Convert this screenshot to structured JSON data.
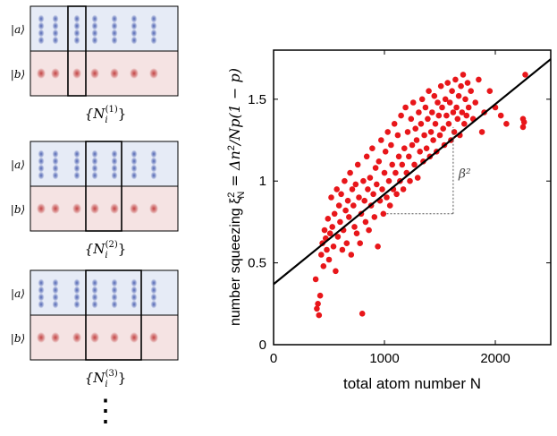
{
  "panels": [
    {
      "label_a": "|a⟩",
      "label_b": "|b⟩",
      "set_label": "{N_i^(1)}",
      "set_main": "{N",
      "set_sub": "i",
      "set_sup": "(1)",
      "set_close": "}",
      "window_columns": [
        1,
        1
      ]
    },
    {
      "label_a": "|a⟩",
      "label_b": "|b⟩",
      "set_label": "{N_i^(2)}",
      "set_main": "{N",
      "set_sub": "i",
      "set_sup": "(2)",
      "set_close": "}",
      "window_columns": [
        1,
        2
      ]
    },
    {
      "label_a": "|a⟩",
      "label_b": "|b⟩",
      "set_label": "{N_i^(3)}",
      "set_main": "{N",
      "set_sub": "i",
      "set_sup": "(3)",
      "set_close": "}",
      "window_columns": [
        1,
        3
      ]
    }
  ],
  "ellipsis": "⋮",
  "colors": {
    "state_a_bg": "#e6ebf6",
    "state_a_blob": "#4a5fb0",
    "state_b_bg": "#f5e3e3",
    "state_b_blob": "#c03a3a",
    "points": "#e8161a",
    "fit_line": "#000000"
  },
  "annotation": "β²",
  "chart_data": {
    "type": "scatter",
    "xlabel": "total atom number N",
    "ylabel": "number squeezing ξ²_N = Δn²/Np(1−p)",
    "ylabel_parts": {
      "main": "number squeezing ξ",
      "sup": "2",
      "sub": "N",
      "rest": " = Δn",
      "sup2": "2",
      "tail": "/Np(1 − p)"
    },
    "xlim": [
      0,
      2500
    ],
    "ylim": [
      0,
      1.8
    ],
    "xticks": [
      0,
      1000,
      2000
    ],
    "yticks": [
      0,
      0.5,
      1,
      1.5
    ],
    "xtick_labels": [
      "0",
      "1000",
      "2000"
    ],
    "ytick_labels": [
      "0",
      "0.5",
      "1",
      "1.5"
    ],
    "fit": {
      "intercept": 0.37,
      "slope": 0.00055
    },
    "triangle": {
      "x1": 1020,
      "x2": 1620,
      "y_low": 0.8,
      "y_high": 1.33
    },
    "series": [
      {
        "x": [
          380,
          390,
          400,
          410,
          420,
          430,
          440,
          450,
          460,
          470,
          480,
          490,
          500,
          510,
          520,
          530,
          540,
          550,
          560,
          570,
          580,
          590,
          600,
          610,
          620,
          630,
          640,
          650,
          660,
          670,
          680,
          690,
          700,
          710,
          720,
          730,
          740,
          750,
          760,
          770,
          780,
          790,
          800,
          810,
          820,
          830,
          840,
          850,
          860,
          870,
          880,
          890,
          900,
          910,
          920,
          930,
          940,
          950,
          960,
          970,
          980,
          990,
          1000,
          1010,
          1020,
          1030,
          1040,
          1050,
          1060,
          1070,
          1080,
          1090,
          1100,
          1110,
          1120,
          1130,
          1140,
          1150,
          1160,
          1170,
          1180,
          1190,
          1200,
          1210,
          1220,
          1230,
          1240,
          1250,
          1260,
          1270,
          1280,
          1290,
          1300,
          1310,
          1320,
          1330,
          1340,
          1350,
          1360,
          1370,
          1380,
          1390,
          1400,
          1410,
          1420,
          1430,
          1440,
          1450,
          1460,
          1470,
          1480,
          1490,
          1500,
          1510,
          1520,
          1530,
          1540,
          1550,
          1560,
          1570,
          1580,
          1590,
          1600,
          1610,
          1620,
          1630,
          1640,
          1650,
          1660,
          1670,
          1680,
          1690,
          1700,
          1710,
          1720,
          1730,
          1740,
          1750,
          1760,
          1780,
          1800,
          1820,
          1850,
          1880,
          1900,
          1950,
          2000,
          2050,
          2100,
          2250,
          2250,
          2260,
          2270
        ],
        "y": [
          0.4,
          0.22,
          0.25,
          0.18,
          0.3,
          0.55,
          0.62,
          0.48,
          0.7,
          0.65,
          0.58,
          0.77,
          0.52,
          0.68,
          0.9,
          0.72,
          0.6,
          0.8,
          0.45,
          0.95,
          0.66,
          0.85,
          0.75,
          0.92,
          0.58,
          0.7,
          1.0,
          0.82,
          0.62,
          0.88,
          0.78,
          1.05,
          0.55,
          0.95,
          0.85,
          0.72,
          0.98,
          0.68,
          1.1,
          0.9,
          0.62,
          0.8,
          0.19,
          1.0,
          0.88,
          0.75,
          1.15,
          0.95,
          0.7,
          1.02,
          0.85,
          1.2,
          0.92,
          0.78,
          1.08,
          0.98,
          0.6,
          1.12,
          0.88,
          1.25,
          0.95,
          0.8,
          1.05,
          1.18,
          0.9,
          1.3,
          1.0,
          0.85,
          1.22,
          1.1,
          0.95,
          1.35,
          1.05,
          0.92,
          1.28,
          1.15,
          1.0,
          1.4,
          1.1,
          0.95,
          1.2,
          1.45,
          1.05,
          1.3,
          1.15,
          1.0,
          1.38,
          1.22,
          1.48,
          1.1,
          1.32,
          1.25,
          1.02,
          1.42,
          1.18,
          1.35,
          1.5,
          1.12,
          1.28,
          1.45,
          1.2,
          1.38,
          1.55,
          1.15,
          1.3,
          1.42,
          1.25,
          1.52,
          1.35,
          1.18,
          1.48,
          1.4,
          1.28,
          1.58,
          1.45,
          1.32,
          1.22,
          1.5,
          1.4,
          1.6,
          1.35,
          1.48,
          1.25,
          1.55,
          1.42,
          1.3,
          1.62,
          1.45,
          1.38,
          1.52,
          1.28,
          1.58,
          1.42,
          1.65,
          1.35,
          1.5,
          1.4,
          1.6,
          1.45,
          1.55,
          1.38,
          1.48,
          1.62,
          1.3,
          1.42,
          1.55,
          1.45,
          1.4,
          1.35,
          1.38,
          1.33,
          1.36,
          1.65
        ]
      }
    ]
  }
}
